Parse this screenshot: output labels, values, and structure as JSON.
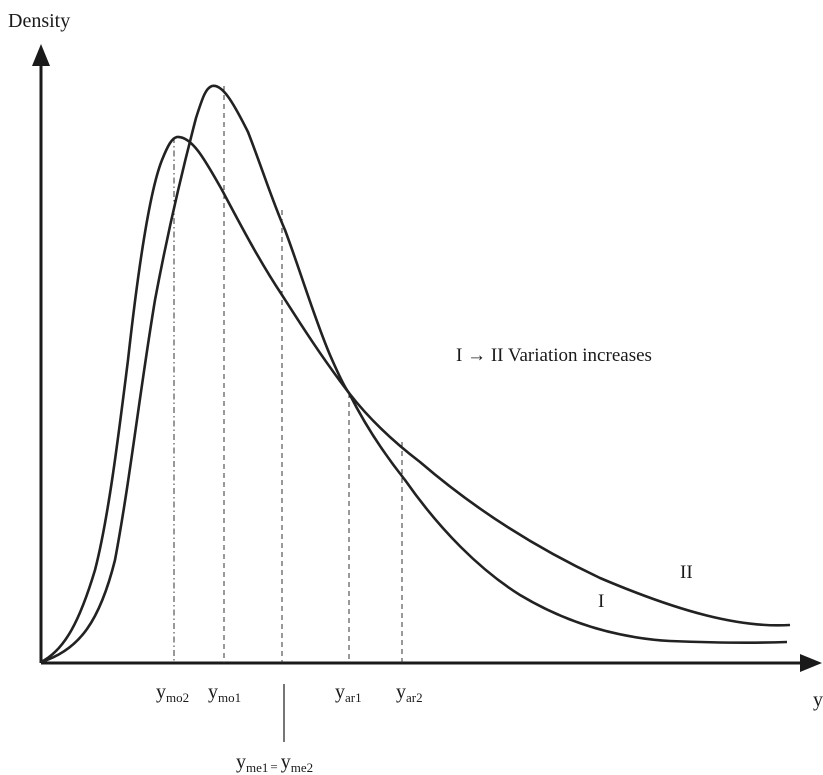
{
  "y_axis_label": "Density",
  "x_axis_label": "y",
  "annotation": "I → II Variation increases",
  "curves": [
    {
      "id": "I",
      "label": "I"
    },
    {
      "id": "II",
      "label": "II"
    }
  ],
  "markers": {
    "mo2": {
      "base": "y",
      "sub": "mo2"
    },
    "mo1": {
      "base": "y",
      "sub": "mo1"
    },
    "ar1": {
      "base": "y",
      "sub": "ar1"
    },
    "ar2": {
      "base": "y",
      "sub": "ar2"
    },
    "me": {
      "base1": "y",
      "sub1": "me1",
      "eq": "=",
      "base2": "y",
      "sub2": "me2"
    }
  },
  "colors": {
    "ink": "#1a1a1a",
    "background": "#ffffff"
  }
}
